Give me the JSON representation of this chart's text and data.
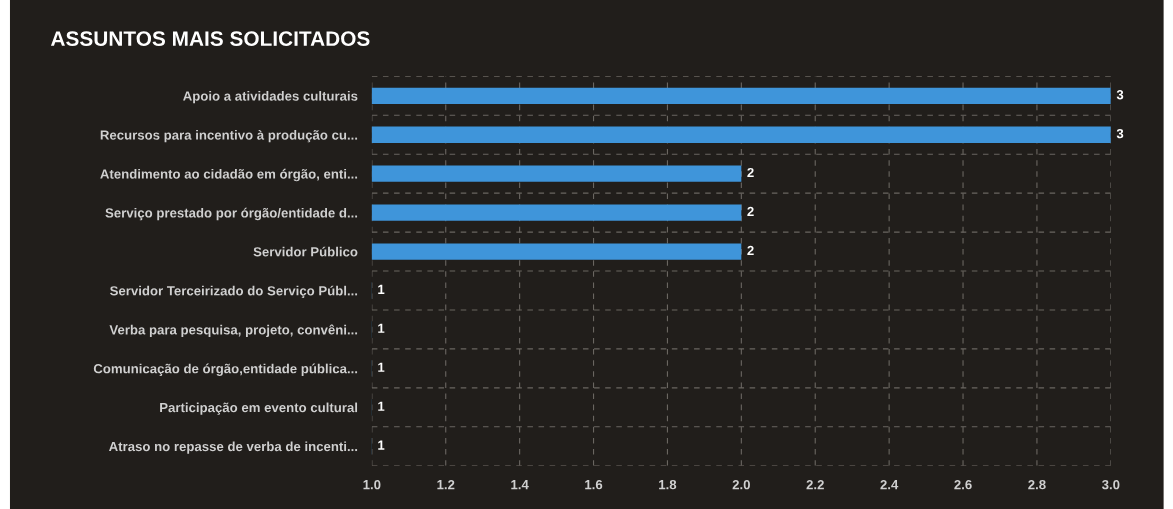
{
  "chart_data": {
    "type": "bar",
    "orientation": "horizontal",
    "title": "ASSUNTOS MAIS SOLICITADOS",
    "categories": [
      "Apoio a atividades culturais",
      "Recursos para incentivo à produção cu...",
      "Atendimento ao cidadão em órgão, enti...",
      "Serviço prestado por órgão/entidade d...",
      "Servidor Público",
      "Servidor Terceirizado do Serviço Públ...",
      "Verba para pesquisa, projeto, convêni...",
      "Comunicação de órgão,entidade pública...",
      "Participação em evento cultural",
      "Atraso no repasse de verba de incenti..."
    ],
    "values": [
      3,
      3,
      2,
      2,
      2,
      1,
      1,
      1,
      1,
      1
    ],
    "color": "#3f95da",
    "xlim": [
      1.0,
      3.0
    ],
    "xticks": [
      {
        "value": 1.0,
        "label": "1.0"
      },
      {
        "value": 1.2,
        "label": "1.2"
      },
      {
        "value": 1.4,
        "label": "1.4"
      },
      {
        "value": 1.6,
        "label": "1.6"
      },
      {
        "value": 1.8,
        "label": "1.8"
      },
      {
        "value": 2.0,
        "label": "2.0"
      },
      {
        "value": 2.2,
        "label": "2.2"
      },
      {
        "value": 2.4,
        "label": "2.4"
      },
      {
        "value": 2.6,
        "label": "2.6"
      },
      {
        "value": 2.8,
        "label": "2.8"
      },
      {
        "value": 3.0,
        "label": "3.0"
      }
    ],
    "grid": true,
    "data_labels": true
  }
}
